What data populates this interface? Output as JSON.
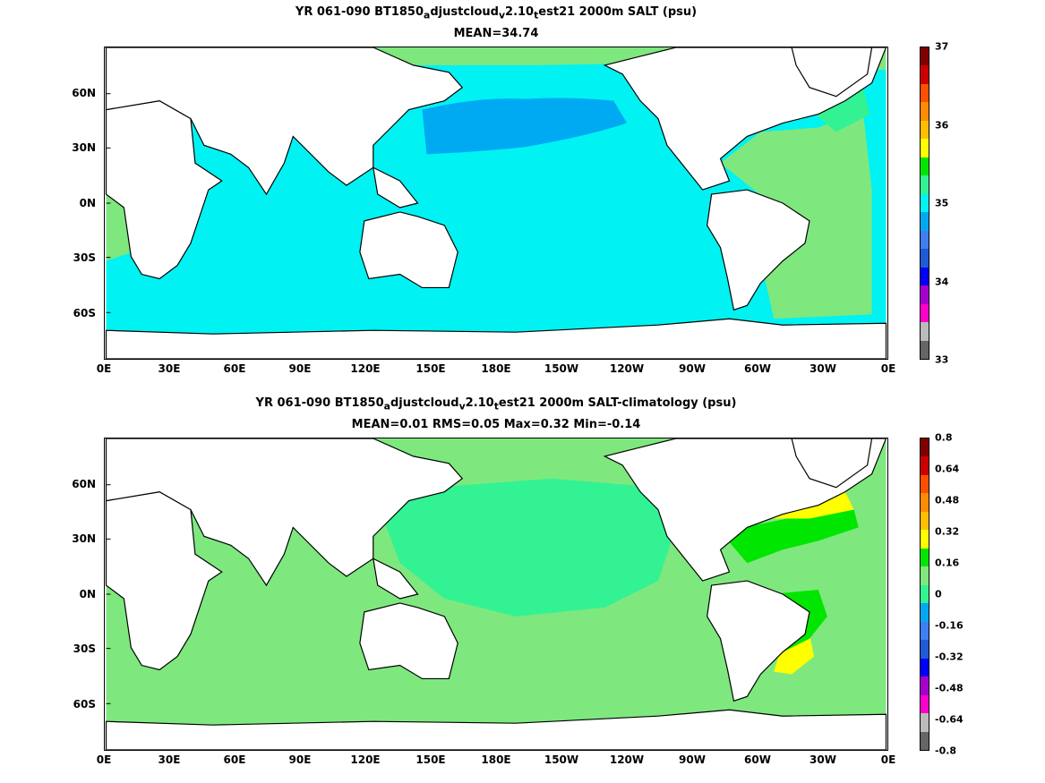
{
  "panels": [
    {
      "title_line1": {
        "pre": "YR 061-090 BT1850",
        "s1": "a",
        "m1": "djustcloud",
        "s2": "v",
        "m2": "2.10",
        "s3": "t",
        "post": "est21 2000m SALT (psu)"
      },
      "title_line2": "MEAN=34.74",
      "ocean_color": "#00f2f2",
      "colorbar_colors": [
        "#666666",
        "#bbbbbb",
        "#ff00cc",
        "#a600cc",
        "#0000ff",
        "#1f5bd6",
        "#3f7ff2",
        "#00aaf2",
        "#00f2f2",
        "#33f293",
        "#00e600",
        "#ffff00",
        "#ffbf00",
        "#ff8c00",
        "#ff5000",
        "#cc0000",
        "#800000"
      ],
      "colorbar_labels": [
        "37",
        "36",
        "35",
        "34",
        "33"
      ]
    },
    {
      "title_line1": {
        "pre": "YR 061-090 BT1850",
        "s1": "a",
        "m1": "djustcloud",
        "s2": "v",
        "m2": "2.10",
        "s3": "t",
        "post": "est21 2000m SALT-climatology (psu)"
      },
      "title_line2": "MEAN=0.01   RMS=0.05   Max=0.32   Min=-0.14",
      "ocean_color": "#7ee87e",
      "colorbar_colors": [
        "#666666",
        "#bbbbbb",
        "#ff00cc",
        "#a600cc",
        "#0000ff",
        "#1f5bd6",
        "#3f7ff2",
        "#00aaf2",
        "#33f293",
        "#7ee87e",
        "#00e600",
        "#ffff00",
        "#ffbf00",
        "#ff8c00",
        "#ff5000",
        "#cc0000",
        "#800000"
      ],
      "colorbar_labels": [
        "0.8",
        "0.64",
        "0.48",
        "0.32",
        "0.16",
        "0",
        "-0.16",
        "-0.32",
        "-0.48",
        "-0.64",
        "-0.8"
      ]
    }
  ],
  "lat_labels": [
    "60N",
    "30N",
    "0N",
    "30S",
    "60S"
  ],
  "lon_labels": [
    "0E",
    "30E",
    "60E",
    "90E",
    "120E",
    "150E",
    "180E",
    "150W",
    "120W",
    "90W",
    "60W",
    "30W",
    "0E"
  ],
  "land_color": "#ffffff",
  "coast_color": "#000000"
}
